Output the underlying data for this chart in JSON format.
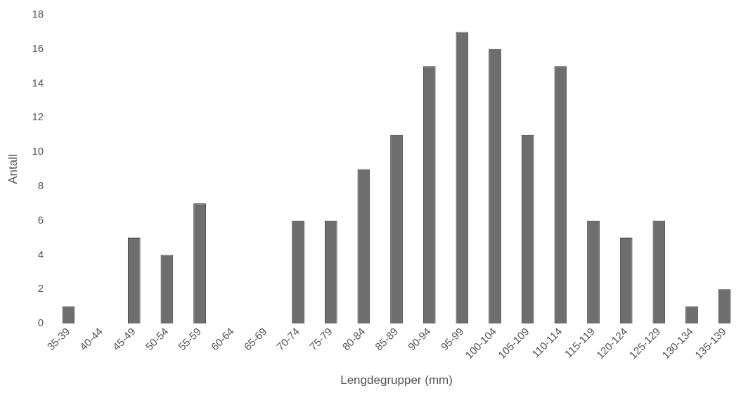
{
  "chart_data": {
    "type": "bar",
    "xlabel": "Lengdegrupper (mm)",
    "ylabel": "Antall",
    "categories": [
      "35-39",
      "40-44",
      "45-49",
      "50-54",
      "55-59",
      "60-64",
      "65-69",
      "70-74",
      "75-79",
      "80-84",
      "85-89",
      "90-94",
      "95-99",
      "100-104",
      "105-109",
      "110-114",
      "115-119",
      "120-124",
      "125-129",
      "130-134",
      "135-139"
    ],
    "values": [
      1,
      0,
      5,
      4,
      7,
      0,
      0,
      6,
      6,
      9,
      11,
      15,
      17,
      16,
      11,
      15,
      6,
      5,
      6,
      1,
      2
    ],
    "color": "#6e6e6e",
    "ylim": [
      0,
      18
    ],
    "yticks": [
      0,
      2,
      4,
      6,
      8,
      10,
      12,
      14,
      16,
      18
    ],
    "grid": false,
    "legend": false
  }
}
